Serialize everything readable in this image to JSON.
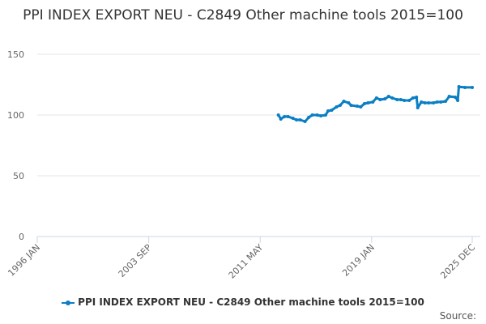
{
  "chart_data": {
    "type": "line",
    "title": "PPI INDEX EXPORT NEU - C2849 Other machine tools 2015=100",
    "xlabel": "",
    "ylabel": "",
    "xlim": [
      "1996-01",
      "2025-12"
    ],
    "ylim": [
      0,
      150
    ],
    "y_ticks": [
      0,
      50,
      100,
      150
    ],
    "x_ticks": [
      "1996 JAN",
      "2003 SEP",
      "2011 MAY",
      "2019 JAN",
      "2025 DEC"
    ],
    "x_tick_dates": [
      "1996-01",
      "2003-09",
      "2011-05",
      "2019-01",
      "2025-12"
    ],
    "grid": "horizontal",
    "legend_position": "bottom",
    "color": "#0a7fc4",
    "series": [
      {
        "name": "PPI INDEX EXPORT NEU - C2849 Other machine tools 2015=100",
        "x": [
          "2012-08",
          "2012-10",
          "2013-01",
          "2013-04",
          "2013-08",
          "2013-11",
          "2014-02",
          "2014-06",
          "2014-09",
          "2014-12",
          "2015-04",
          "2015-07",
          "2015-11",
          "2016-01",
          "2016-04",
          "2016-08",
          "2016-11",
          "2017-02",
          "2017-06",
          "2017-08",
          "2018-01",
          "2018-04",
          "2018-07",
          "2018-10",
          "2019-02",
          "2019-05",
          "2019-08",
          "2019-12",
          "2020-03",
          "2020-06",
          "2020-10",
          "2021-01",
          "2021-04",
          "2021-08",
          "2021-11",
          "2022-02",
          "2022-03",
          "2022-06",
          "2022-09",
          "2022-12",
          "2023-04",
          "2023-07",
          "2023-10",
          "2024-02",
          "2024-05",
          "2024-10",
          "2024-12",
          "2025-01",
          "2025-06",
          "2025-12"
        ],
        "values": [
          100,
          96.7,
          98.7,
          98.7,
          97.3,
          96,
          96,
          94.7,
          98,
          100,
          100,
          99.3,
          100,
          103.3,
          104,
          106.7,
          108,
          111.3,
          110,
          108,
          107.3,
          106.7,
          109.3,
          110,
          110.7,
          114,
          112.7,
          113.3,
          115.3,
          114,
          112.7,
          112.7,
          112,
          112,
          114,
          114.7,
          106,
          110.7,
          110,
          110,
          110,
          110.7,
          110.7,
          111.3,
          115.3,
          114.7,
          112,
          123.3,
          122.7,
          122.7
        ]
      }
    ]
  },
  "legend": {
    "label": "PPI INDEX EXPORT NEU - C2849 Other machine tools 2015=100"
  },
  "source_label": "Source:"
}
